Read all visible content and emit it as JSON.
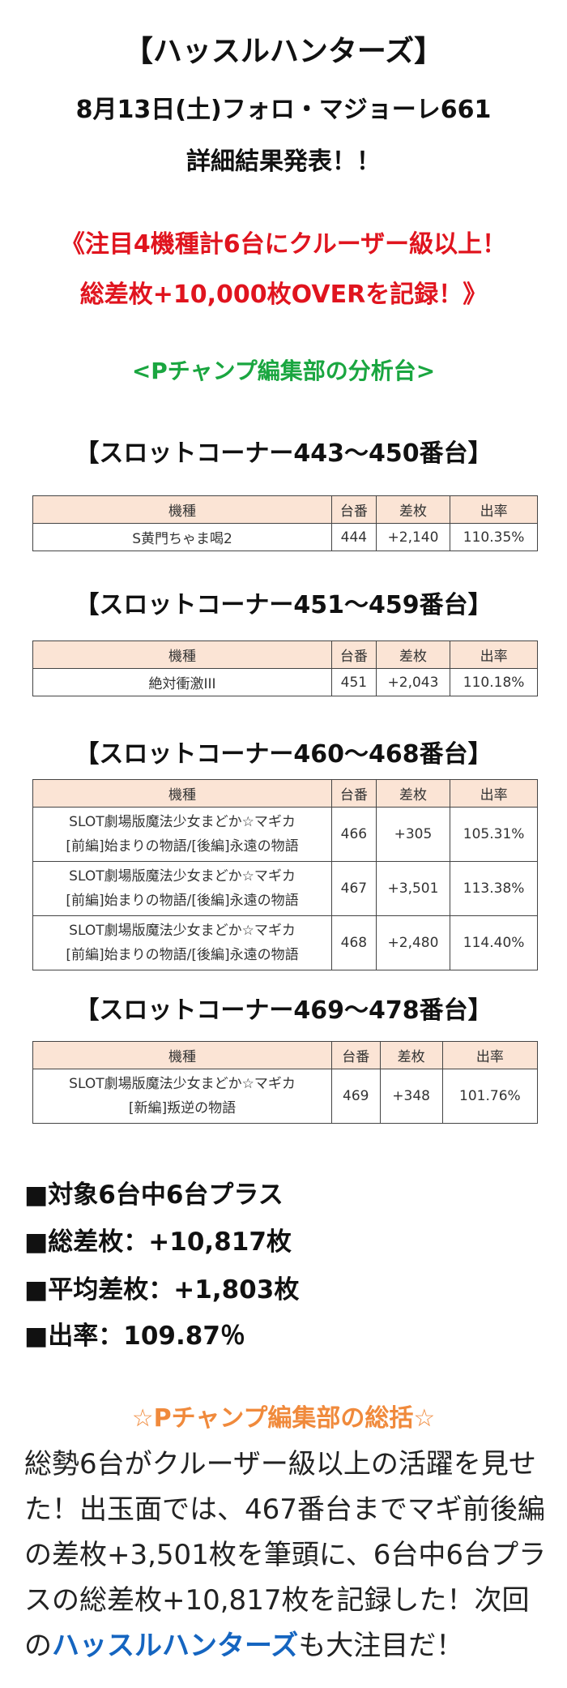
{
  "header": {
    "title": "【ハッスルハンターズ】",
    "date_line": "8月13日(土)フォロ・マジョーレ661",
    "subtitle": "詳細結果発表！！"
  },
  "highlight": [
    "《注目4機種計6台にクルーザー級以上！",
    "総差枚+10,000枚OVERを記録！》"
  ],
  "analysis_heading": "<Pチャンプ編集部の分析台>",
  "sections": [
    {
      "heading": "【スロットコーナー443〜450番台】",
      "columns": [
        "機種",
        "台番",
        "差枚",
        "出率"
      ],
      "rows": [
        [
          [
            "S黄門ちゃま喝2"
          ],
          "444",
          "+2,140",
          "110.35%"
        ]
      ]
    },
    {
      "heading": "【スロットコーナー451〜459番台】",
      "columns": [
        "機種",
        "台番",
        "差枚",
        "出率"
      ],
      "rows": [
        [
          [
            "絶対衝激III"
          ],
          "451",
          "+2,043",
          "110.18%"
        ]
      ]
    },
    {
      "heading": "【スロットコーナー460〜468番台】",
      "columns": [
        "機種",
        "台番",
        "差枚",
        "出率"
      ],
      "rows": [
        [
          [
            "SLOT劇場版魔法少女まどか☆マギカ",
            "[前編]始まりの物語/[後編]永遠の物語"
          ],
          "466",
          "+305",
          "105.31%"
        ],
        [
          [
            "SLOT劇場版魔法少女まどか☆マギカ",
            "[前編]始まりの物語/[後編]永遠の物語"
          ],
          "467",
          "+3,501",
          "113.38%"
        ],
        [
          [
            "SLOT劇場版魔法少女まどか☆マギカ",
            "[前編]始まりの物語/[後編]永遠の物語"
          ],
          "468",
          "+2,480",
          "114.40%"
        ]
      ]
    },
    {
      "heading": "【スロットコーナー469〜478番台】",
      "columns": [
        "機種",
        "台番",
        "差枚",
        "出率"
      ],
      "rows": [
        [
          [
            "SLOT劇場版魔法少女まどか☆マギカ",
            "[新編]叛逆の物語"
          ],
          "469",
          "+348",
          "101.76%"
        ]
      ]
    }
  ],
  "summary": [
    "■対象6台中6台プラス",
    "■総差枚：+10,817枚",
    "■平均差枚：+1,803枚",
    "■出率：109.87％"
  ],
  "review": {
    "title": "☆Pチャンプ編集部の総括☆",
    "text": "総勢6台がクルーザー級以上の活躍を見せた！出玉面では、467番台までマギ前後編の差枚+3,501枚を筆頭に、6台中6台プラスの総差枚+10,817枚を記録した！次回の",
    "emphasis": "ハッスルハンターズ",
    "text_end": "も大注目だ！"
  }
}
